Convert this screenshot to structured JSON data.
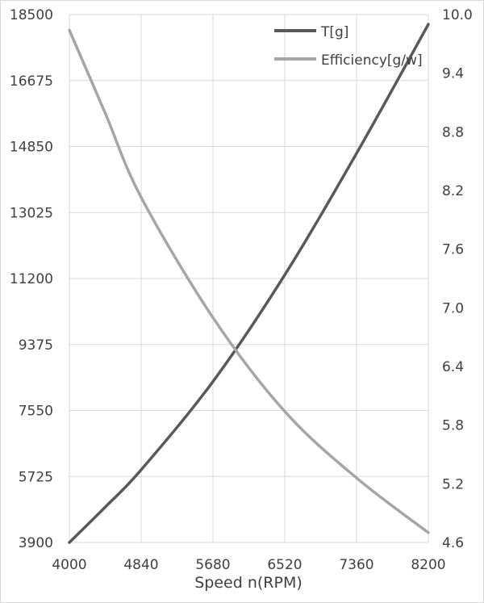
{
  "chart_data": {
    "type": "line",
    "title": "",
    "xlabel": "Speed n(RPM)",
    "ylabel": "",
    "y2label": "",
    "xlim": [
      4000,
      8200
    ],
    "ylim": [
      3900,
      18500
    ],
    "y2lim": [
      4.6,
      10.0
    ],
    "x_ticks": [
      "4000",
      "4840",
      "5680",
      "6520",
      "7360",
      "8200"
    ],
    "y_ticks": [
      "3900",
      "5725",
      "7550",
      "9375",
      "11200",
      "13025",
      "14850",
      "16675",
      "18500"
    ],
    "y2_ticks": [
      "4.6",
      "5.2",
      "5.8",
      "6.4",
      "7.0",
      "7.6",
      "8.2",
      "8.8",
      "9.4",
      "10.0"
    ],
    "grid": true,
    "legend_position": "top-right",
    "series": [
      {
        "name": "T[g]",
        "axis": "left",
        "color": "#595959",
        "x": [
          4000,
          4420,
          4840,
          5680,
          6520,
          7360,
          8200
        ],
        "y": [
          3900,
          4880,
          5910,
          8350,
          11300,
          14660,
          18230
        ]
      },
      {
        "name": "Efficiency[g/w]",
        "axis": "right",
        "color": "#a6a6a6",
        "x": [
          4000,
          4420,
          4840,
          5680,
          6520,
          7360,
          8200
        ],
        "y": [
          9.84,
          8.99,
          8.13,
          6.9,
          5.94,
          5.26,
          4.7
        ]
      }
    ]
  }
}
